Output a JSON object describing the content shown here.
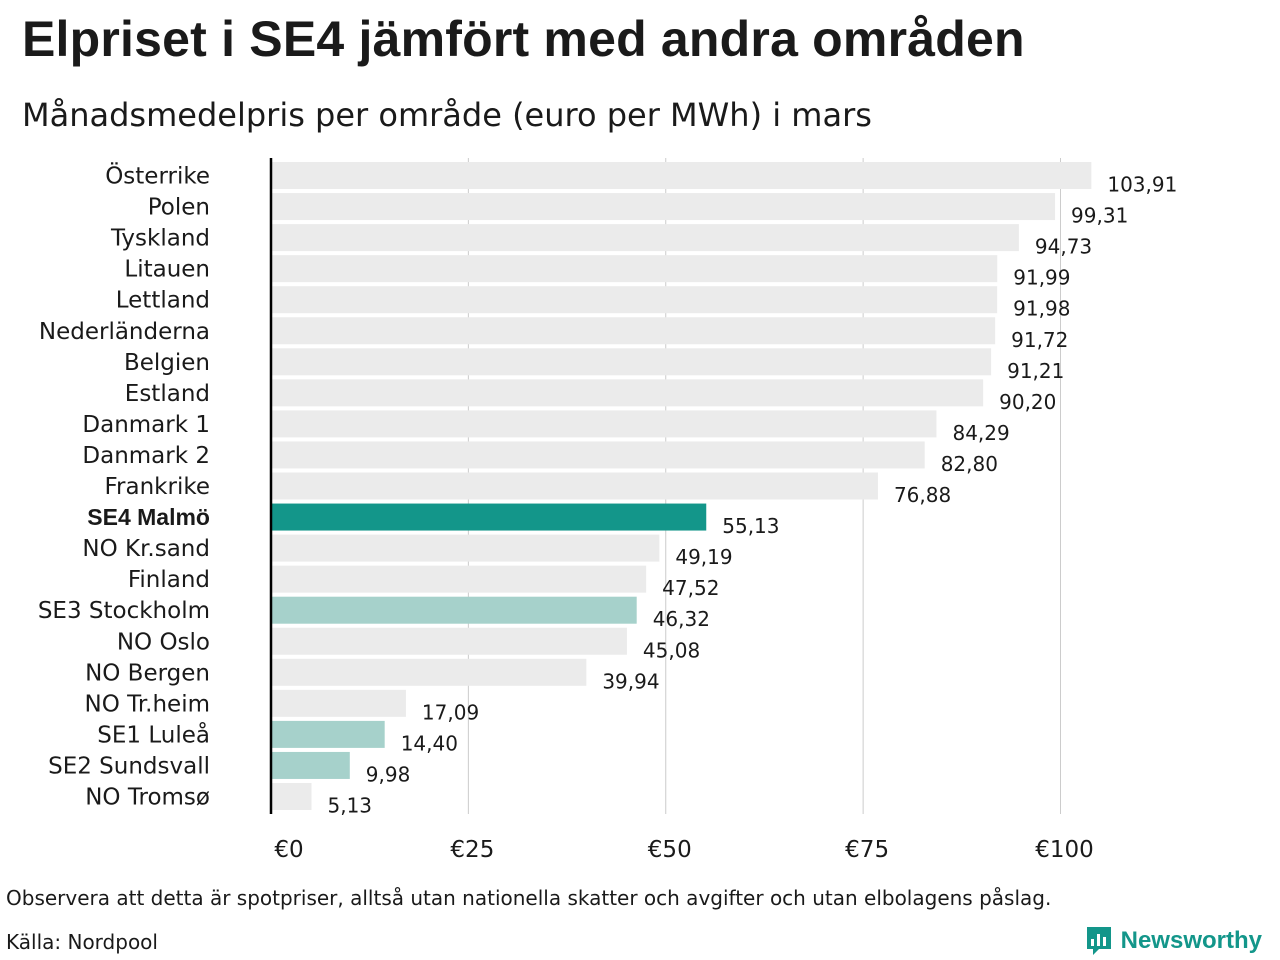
{
  "header": {
    "title": "Elpriset i SE4 jämfört med andra områden",
    "subtitle": "Månadsmedelpris per område (euro per MWh) i mars"
  },
  "footer": {
    "note": "Observera att detta är spotpriser, alltså utan nationella skatter och avgifter och utan elbolagens påslag.",
    "source": "Källa: Nordpool",
    "brand": "Newsworthy"
  },
  "colors": {
    "default_bar": "#ebebeb",
    "highlight_bar": "#13968a",
    "secondary_bar": "#a6d1cb",
    "grid": "#cccccc",
    "axis": "#000000",
    "brand": "#13968a"
  },
  "chart_data": {
    "type": "bar",
    "orientation": "horizontal",
    "title": "Elpriset i SE4 jämfört med andra områden",
    "subtitle": "Månadsmedelpris per område (euro per MWh) i mars",
    "xlim": [
      0,
      110
    ],
    "x_ticks": [
      0,
      25,
      50,
      75,
      100
    ],
    "x_tick_labels": [
      "€0",
      "€25",
      "€50",
      "€75",
      "€100"
    ],
    "grid": true,
    "categories": [
      "Österrike",
      "Polen",
      "Tyskland",
      "Litauen",
      "Lettland",
      "Nederländerna",
      "Belgien",
      "Estland",
      "Danmark  1",
      "Danmark  2",
      "Frankrike",
      "SE4 Malmö",
      "NO Kr.sand",
      "Finland",
      "SE3  Stockholm",
      "NO Oslo",
      "NO Bergen",
      "NO Tr.heim",
      "SE1  Luleå",
      "SE2  Sundsvall",
      "NO Tromsø"
    ],
    "values": [
      103.91,
      99.31,
      94.73,
      91.99,
      91.98,
      91.72,
      91.21,
      90.2,
      84.29,
      82.8,
      76.88,
      55.13,
      49.19,
      47.52,
      46.32,
      45.08,
      39.94,
      17.09,
      14.4,
      9.98,
      5.13
    ],
    "value_labels": [
      "103,91",
      "99,31",
      "94,73",
      "91,99",
      "91,98",
      "91,72",
      "91,21",
      "90,20",
      "84,29",
      "82,80",
      "76,88",
      "55,13",
      "49,19",
      "47,52",
      "46,32",
      "45,08",
      "39,94",
      "17,09",
      "14,40",
      "9,98",
      "5,13"
    ],
    "bar_styles": [
      "default",
      "default",
      "default",
      "default",
      "default",
      "default",
      "default",
      "default",
      "default",
      "default",
      "default",
      "highlight",
      "default",
      "default",
      "secondary",
      "default",
      "default",
      "default",
      "secondary",
      "secondary",
      "default"
    ]
  }
}
